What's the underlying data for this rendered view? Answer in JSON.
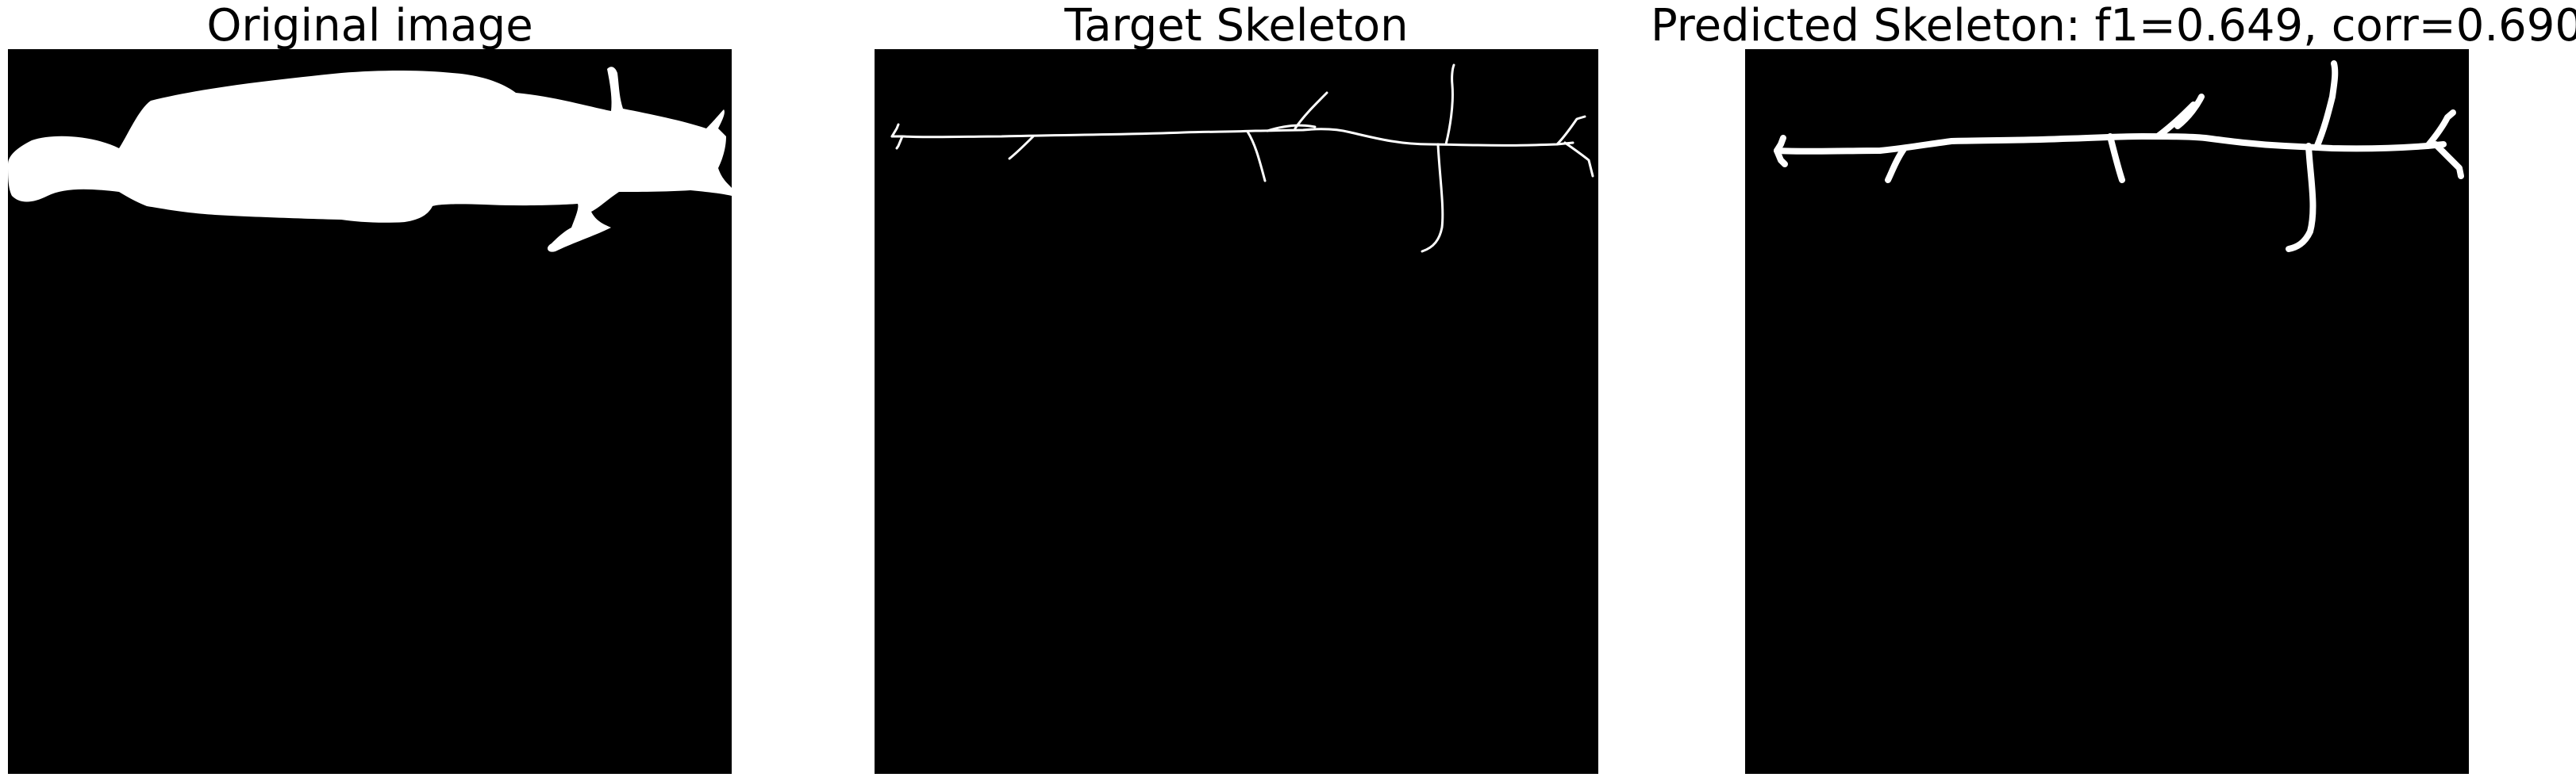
{
  "figure": {
    "panels": [
      {
        "id": "original",
        "title": "Original image"
      },
      {
        "id": "target",
        "title": "Target Skeleton"
      },
      {
        "id": "predicted",
        "title": "Predicted Skeleton: f1=0.649, corr=0.690"
      }
    ]
  },
  "colors": {
    "background": "#000000",
    "foreground": "#ffffff",
    "page": "#ffffff",
    "title_text": "#000000"
  }
}
